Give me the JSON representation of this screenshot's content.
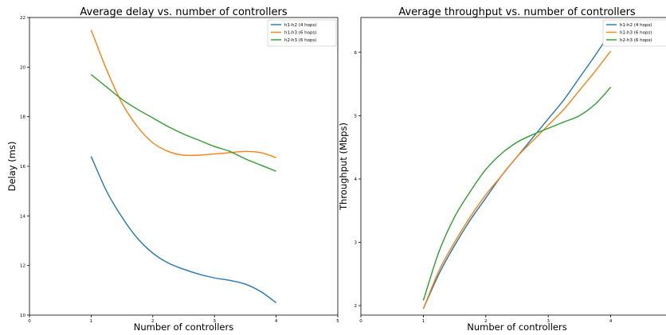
{
  "chart_data": [
    {
      "type": "line",
      "title": "Average delay vs. number of controllers",
      "xlabel": "Number of controllers",
      "ylabel": "Delay (ms)",
      "xlim": [
        0,
        5
      ],
      "ylim": [
        10,
        22
      ],
      "xticks": [
        0,
        1,
        2,
        3,
        4,
        5
      ],
      "yticks": [
        10,
        12,
        14,
        16,
        18,
        20,
        22
      ],
      "grid": false,
      "legend": "top-right",
      "series": [
        {
          "name": "h1-h2 (4 hops)",
          "color": "#1f77b4",
          "x": [
            1,
            1.25,
            1.5,
            1.75,
            2,
            2.25,
            2.5,
            2.75,
            3,
            3.25,
            3.5,
            3.75,
            4
          ],
          "y": [
            16.4,
            15.0,
            13.95,
            13.1,
            12.5,
            12.1,
            11.85,
            11.65,
            11.5,
            11.4,
            11.25,
            10.95,
            10.5
          ]
        },
        {
          "name": "h1-h3 (6 hops)",
          "color": "#ff7f0e",
          "x": [
            1,
            1.25,
            1.5,
            1.75,
            2,
            2.25,
            2.5,
            2.75,
            3,
            3.25,
            3.5,
            3.75,
            4
          ],
          "y": [
            21.5,
            19.9,
            18.55,
            17.6,
            16.95,
            16.6,
            16.45,
            16.45,
            16.5,
            16.55,
            16.6,
            16.55,
            16.35
          ]
        },
        {
          "name": "h2-h3 (6 hops)",
          "color": "#2ca02c",
          "x": [
            1,
            1.25,
            1.5,
            1.75,
            2,
            2.25,
            2.5,
            2.75,
            3,
            3.25,
            3.5,
            3.75,
            4
          ],
          "y": [
            19.7,
            19.2,
            18.7,
            18.3,
            17.95,
            17.6,
            17.3,
            17.05,
            16.8,
            16.6,
            16.3,
            16.05,
            15.8
          ]
        }
      ]
    },
    {
      "type": "line",
      "title": "Average throughput vs. number of controllers",
      "xlabel": "Number of controllers",
      "ylabel": "Throughput (Mbps)",
      "xlim": [
        0,
        5
      ],
      "ylim": [
        1.85,
        6.55
      ],
      "xticks": [
        0,
        1,
        2,
        3,
        4
      ],
      "yticks": [
        2,
        3,
        4,
        5,
        6
      ],
      "grid": false,
      "legend": "top-right",
      "series": [
        {
          "name": "h1-h2 (4 hops)",
          "color": "#1f77b4",
          "x": [
            1,
            1.25,
            1.5,
            1.75,
            2,
            2.25,
            2.5,
            2.75,
            3,
            3.25,
            3.5,
            3.75,
            4
          ],
          "y": [
            1.95,
            2.5,
            2.95,
            3.35,
            3.7,
            4.05,
            4.35,
            4.65,
            4.95,
            5.25,
            5.6,
            5.95,
            6.32
          ]
        },
        {
          "name": "h1-h3 (6 hops)",
          "color": "#ff7f0e",
          "x": [
            1,
            1.25,
            1.5,
            1.75,
            2,
            2.25,
            2.5,
            2.75,
            3,
            3.25,
            3.5,
            3.75,
            4
          ],
          "y": [
            1.95,
            2.55,
            3.0,
            3.4,
            3.75,
            4.05,
            4.35,
            4.6,
            4.85,
            5.1,
            5.4,
            5.7,
            6.02
          ]
        },
        {
          "name": "h2-h3 (6 hops)",
          "color": "#2ca02c",
          "x": [
            1,
            1.25,
            1.5,
            1.75,
            2,
            2.25,
            2.5,
            2.75,
            3,
            3.25,
            3.5,
            3.75,
            4
          ],
          "y": [
            2.08,
            2.85,
            3.4,
            3.8,
            4.15,
            4.4,
            4.58,
            4.7,
            4.8,
            4.9,
            5.0,
            5.18,
            5.45
          ]
        }
      ]
    }
  ]
}
